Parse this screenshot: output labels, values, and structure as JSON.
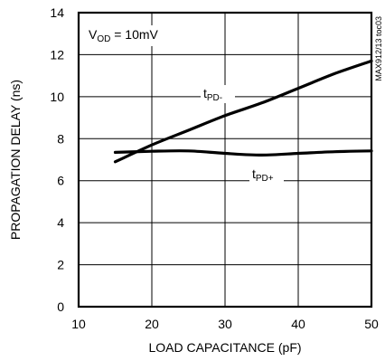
{
  "chart_data": {
    "type": "line",
    "title": "",
    "xlabel": "LOAD CAPACITANCE (pF)",
    "ylabel": "PROPAGATION DELAY (ns)",
    "xlim": [
      10,
      50
    ],
    "ylim": [
      0,
      14
    ],
    "x_ticks": [
      10,
      20,
      30,
      40,
      50
    ],
    "y_ticks": [
      0,
      2,
      4,
      6,
      8,
      10,
      12,
      14
    ],
    "grid": true,
    "condition": {
      "main": "V",
      "sub": "OD",
      "rest": " = 10mV"
    },
    "figure_code": "MAX912/13 toc03",
    "series": [
      {
        "name": "tPD-",
        "label_main": "t",
        "label_sub": "PD-",
        "x": [
          15,
          20,
          25,
          30,
          35,
          40,
          45,
          50
        ],
        "y": [
          6.9,
          7.7,
          8.4,
          9.1,
          9.7,
          10.4,
          11.1,
          11.7
        ]
      },
      {
        "name": "tPD+",
        "label_main": "t",
        "label_sub": "PD+",
        "x": [
          15,
          20,
          25,
          30,
          35,
          40,
          45,
          50
        ],
        "y": [
          7.35,
          7.4,
          7.42,
          7.3,
          7.22,
          7.3,
          7.38,
          7.42
        ]
      }
    ]
  }
}
